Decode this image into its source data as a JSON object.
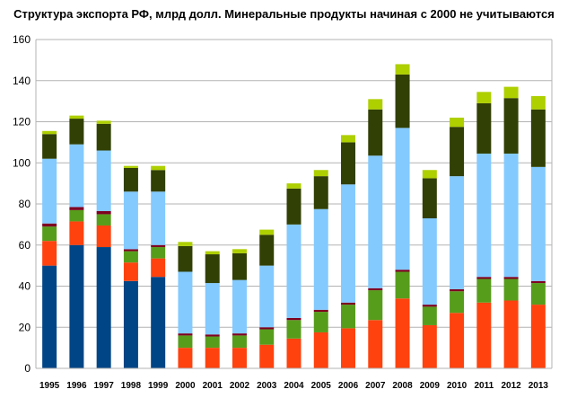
{
  "chart_data": {
    "type": "bar",
    "stacked": true,
    "title": "Структура экспорта РФ, млрд долл. Минеральные продукты начиная с 2000 не учитываются",
    "xlabel": "",
    "ylabel": "",
    "ylim": [
      0,
      160
    ],
    "yticks": [
      0,
      20,
      40,
      60,
      80,
      100,
      120,
      140,
      160
    ],
    "grid": true,
    "legend": "none",
    "categories": [
      "1995",
      "1996",
      "1997",
      "1998",
      "1999",
      "2000",
      "2001",
      "2002",
      "2003",
      "2004",
      "2005",
      "2006",
      "2007",
      "2008",
      "2009",
      "2010",
      "2011",
      "2012",
      "2013"
    ],
    "series": [
      {
        "color": "#004586",
        "values": [
          50,
          60,
          59,
          42.5,
          44.5,
          0,
          0,
          0,
          0,
          0,
          0,
          0,
          0,
          0,
          0,
          0,
          0,
          0,
          0
        ]
      },
      {
        "color": "#ff420e",
        "values": [
          12,
          11.5,
          10.5,
          9,
          9,
          10,
          10,
          10,
          11.5,
          14.5,
          17.5,
          19.5,
          23.5,
          34,
          21,
          27,
          32,
          33,
          31
        ]
      },
      {
        "color": "#579d1c",
        "values": [
          7,
          5.5,
          5.5,
          5.5,
          5.5,
          6,
          5.5,
          6,
          7.5,
          9,
          10,
          11.5,
          14.5,
          13,
          9,
          10.5,
          11.5,
          10.5,
          10.5
        ]
      },
      {
        "color": "#7e0021",
        "values": [
          1.5,
          1.5,
          1.5,
          1,
          1,
          1,
          1,
          1,
          1,
          1,
          1,
          1,
          1,
          1,
          1,
          1,
          1,
          1,
          1
        ]
      },
      {
        "color": "#83caff",
        "values": [
          31.5,
          30.5,
          29.5,
          28,
          26,
          30,
          25,
          26,
          30,
          45.5,
          49,
          57.5,
          64.5,
          69,
          42,
          55,
          60,
          60,
          55.5
        ]
      },
      {
        "color": "#314004",
        "values": [
          12,
          12.5,
          13,
          11.5,
          10.5,
          12.5,
          14,
          13,
          15,
          17.5,
          16,
          20.5,
          22.5,
          26,
          19.5,
          24,
          24.5,
          27,
          28
        ]
      },
      {
        "color": "#aecf00",
        "values": [
          1.5,
          1.5,
          1.5,
          1,
          2,
          2,
          1.5,
          2,
          2.5,
          2.5,
          3,
          3.5,
          5,
          5,
          4,
          4.5,
          5.5,
          5.5,
          6.5
        ]
      }
    ]
  }
}
